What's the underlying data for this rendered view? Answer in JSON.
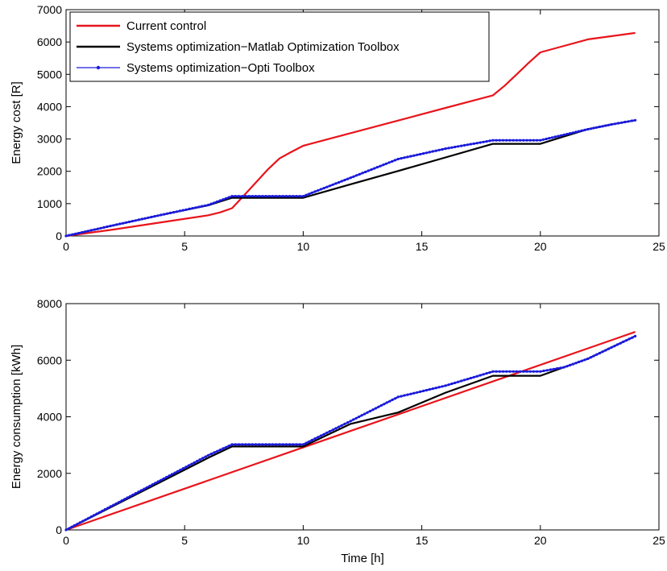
{
  "chart_data": [
    {
      "type": "line",
      "title": "",
      "xlabel": "",
      "ylabel": "Energy cost [R]",
      "xlim": [
        0,
        25
      ],
      "ylim": [
        0,
        7000
      ],
      "xticks": [
        0,
        5,
        10,
        15,
        20,
        25
      ],
      "yticks": [
        0,
        1000,
        2000,
        3000,
        4000,
        5000,
        6000,
        7000
      ],
      "grid": false,
      "legend_position": "top-left",
      "series": [
        {
          "name": "Current control",
          "color": "#e8141b",
          "marker": "none",
          "x": [
            0,
            2,
            4,
            6,
            6.5,
            7,
            7.5,
            8,
            8.5,
            9,
            9.5,
            10,
            12,
            14,
            16,
            18,
            18.5,
            19,
            19.5,
            20,
            21,
            22,
            23,
            24
          ],
          "y": [
            0,
            200,
            420,
            640,
            730,
            860,
            1250,
            1650,
            2050,
            2400,
            2600,
            2790,
            3180,
            3570,
            3960,
            4350,
            4650,
            5000,
            5350,
            5680,
            5880,
            6080,
            6180,
            6280
          ]
        },
        {
          "name": "Systems optimization−Matlab Optimization Toolbox",
          "color": "#000000",
          "marker": "none",
          "x": [
            0,
            2,
            4,
            6,
            7,
            8,
            9,
            10,
            12,
            14,
            16,
            18,
            19,
            20,
            21,
            22,
            23,
            24
          ],
          "y": [
            0,
            330,
            650,
            950,
            1180,
            1180,
            1180,
            1180,
            1600,
            2010,
            2430,
            2850,
            2850,
            2850,
            3080,
            3300,
            3450,
            3580
          ]
        },
        {
          "name": "Systems optimization−Opti Toolbox",
          "color": "#1a1adc",
          "marker": "dot",
          "x": [
            0,
            2,
            4,
            6,
            7,
            8,
            9,
            10,
            12,
            14,
            16,
            18,
            19,
            20,
            21,
            22,
            23,
            24
          ],
          "y": [
            0,
            330,
            650,
            960,
            1230,
            1230,
            1230,
            1230,
            1800,
            2380,
            2700,
            2960,
            2960,
            2960,
            3130,
            3300,
            3450,
            3580
          ]
        }
      ]
    },
    {
      "type": "line",
      "title": "",
      "xlabel": "Time [h]",
      "ylabel": "Energy consumption [kWh]",
      "xlim": [
        0,
        25
      ],
      "ylim": [
        0,
        8000
      ],
      "xticks": [
        0,
        5,
        10,
        15,
        20,
        25
      ],
      "yticks": [
        0,
        2000,
        4000,
        6000,
        8000
      ],
      "grid": false,
      "series": [
        {
          "name": "Current control",
          "color": "#e8141b",
          "marker": "none",
          "x": [
            0,
            24
          ],
          "y": [
            0,
            7000
          ]
        },
        {
          "name": "Systems optimization−Matlab Optimization Toolbox",
          "color": "#000000",
          "marker": "none",
          "x": [
            0,
            2,
            4,
            6,
            7,
            8,
            9,
            10,
            12,
            14,
            16,
            18,
            19,
            20,
            21,
            22,
            23,
            24
          ],
          "y": [
            0,
            850,
            1700,
            2550,
            2950,
            2950,
            2950,
            2950,
            3750,
            4150,
            4850,
            5450,
            5450,
            5450,
            5750,
            6050,
            6450,
            6850
          ]
        },
        {
          "name": "Systems optimization−Opti Toolbox",
          "color": "#1a1adc",
          "marker": "dot",
          "x": [
            0,
            2,
            4,
            6,
            7,
            8,
            9,
            10,
            12,
            14,
            16,
            18,
            19,
            20,
            21,
            22,
            23,
            24
          ],
          "y": [
            0,
            880,
            1760,
            2640,
            3020,
            3020,
            3020,
            3020,
            3850,
            4700,
            5100,
            5600,
            5600,
            5600,
            5750,
            6050,
            6450,
            6850
          ]
        }
      ]
    }
  ]
}
